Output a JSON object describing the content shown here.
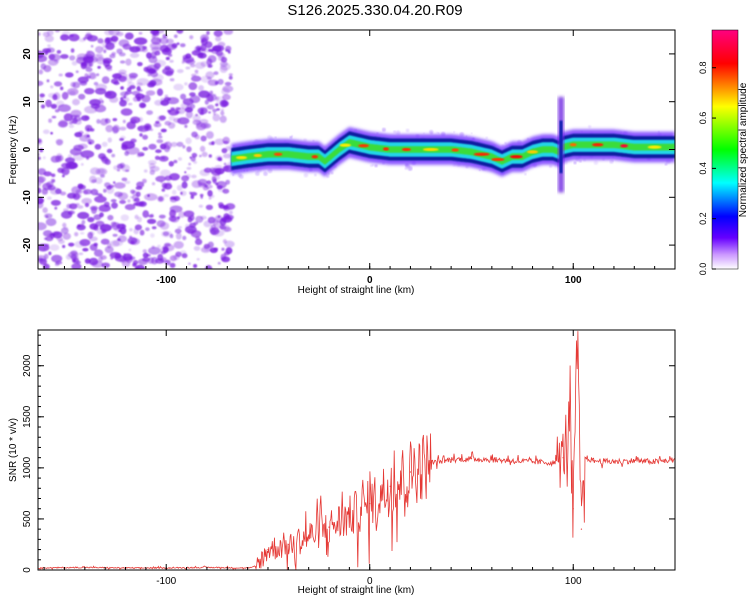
{
  "title": "S126.2025.330.04.20.R09",
  "chart_data": [
    {
      "type": "heatmap",
      "xlabel": "Height of straight line (km)",
      "ylabel": "Frequency (Hz)",
      "xlim": [
        -163,
        150
      ],
      "ylim": [
        -25,
        25
      ],
      "xticks": [
        -100,
        0,
        100
      ],
      "yticks": [
        -20,
        -10,
        0,
        10,
        20
      ],
      "colorbar": {
        "label": "Normalized spectral amplitude",
        "range": [
          0,
          0.95
        ],
        "ticks": [
          0.0,
          0.2,
          0.4,
          0.6,
          0.8
        ],
        "colors": [
          "#ffffff",
          "#6600ff",
          "#0000ff",
          "#00ffff",
          "#00ff00",
          "#ffff00",
          "#ff0000",
          "#ff0080"
        ]
      },
      "noise_region": {
        "x": [
          -163,
          -68
        ],
        "y": [
          -25,
          25
        ],
        "color": "#7b1fe0"
      },
      "ridge": {
        "x": [
          -68,
          -60,
          -50,
          -40,
          -30,
          -25,
          -22,
          -15,
          -10,
          -5,
          0,
          10,
          20,
          30,
          40,
          50,
          55,
          60,
          65,
          70,
          75,
          80,
          85,
          90,
          93,
          95,
          100,
          110,
          120,
          130,
          140,
          150
        ],
        "y": [
          -2.0,
          -1.5,
          -1.0,
          -1.0,
          -1.5,
          -1.5,
          -2.5,
          0,
          1.5,
          1.0,
          0.5,
          0,
          0,
          0,
          0,
          -0.5,
          -1.0,
          -1.5,
          -2.5,
          -1.5,
          -1.5,
          -0.5,
          0,
          0,
          -0.5,
          0.5,
          1.0,
          1.0,
          1.0,
          0.5,
          0.5,
          0.5
        ]
      },
      "spike": {
        "x": 94,
        "y": [
          -9,
          11
        ]
      }
    },
    {
      "type": "line",
      "xlabel": "Height of straight line (km)",
      "ylabel": "SNR (10 * v/v)",
      "xlim": [
        -163,
        150
      ],
      "ylim": [
        0,
        2350
      ],
      "xticks": [
        -100,
        0,
        100
      ],
      "yticks": [
        0,
        500,
        1000,
        1500,
        2000
      ],
      "series": [
        {
          "color": "#e53935",
          "x": [
            -163,
            -140,
            -120,
            -100,
            -80,
            -60,
            -56,
            -50,
            -40,
            -30,
            -20,
            -10,
            0,
            10,
            20,
            30,
            40,
            50,
            60,
            70,
            80,
            90,
            95,
            98,
            100,
            102,
            104,
            106,
            110,
            120,
            130,
            140,
            150
          ],
          "y": [
            20,
            25,
            20,
            20,
            25,
            20,
            30,
            200,
            250,
            330,
            420,
            520,
            650,
            820,
            960,
            1050,
            1080,
            1090,
            1080,
            1070,
            1060,
            1050,
            1100,
            1500,
            600,
            2350,
            400,
            1100,
            1070,
            1060,
            1070,
            1060,
            1080
          ]
        }
      ]
    }
  ]
}
